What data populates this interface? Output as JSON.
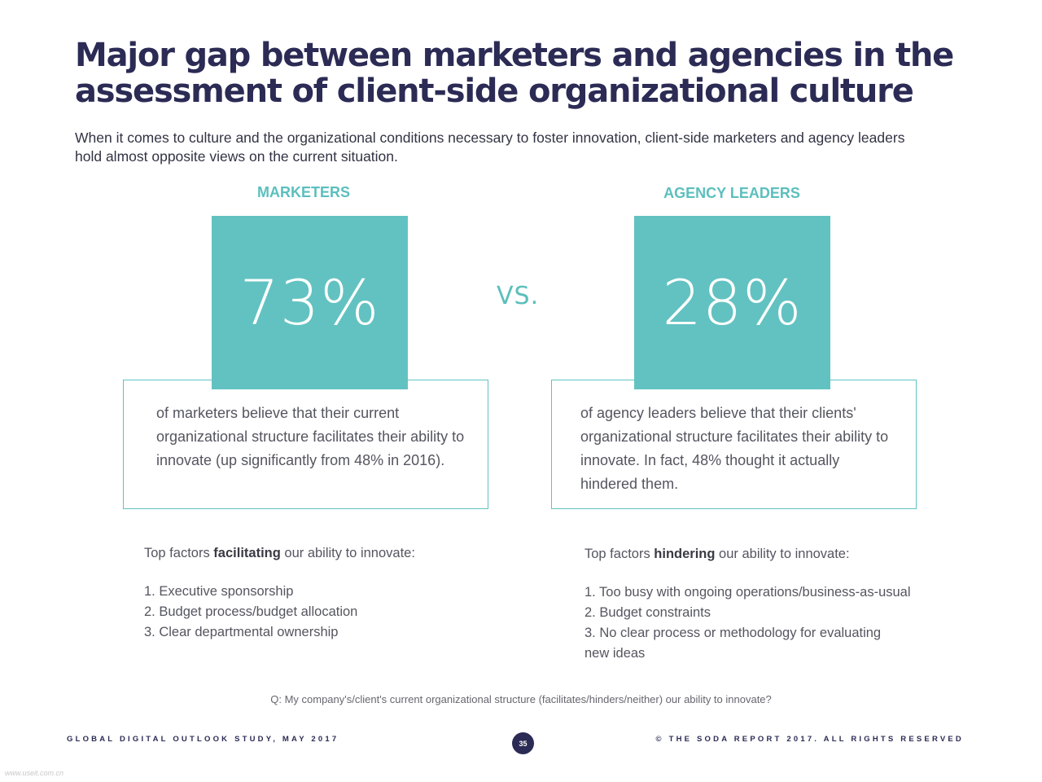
{
  "title": {
    "line1": "Major gap between marketers and agencies in the",
    "line2": "assessment of client-side organizational culture"
  },
  "intro": "When it comes to culture and the organizational conditions necessary to foster innovation, client-side marketers and agency leaders hold almost opposite views on the current situation.",
  "vs": "VS.",
  "marketers": {
    "heading": "MARKETERS",
    "stat": "73%",
    "description": "of marketers believe that their current organizational structure facilitates their ability to innovate (up significantly from 48% in 2016).",
    "factors_prefix": "Top factors ",
    "factors_keyword": "facilitating",
    "factors_suffix": " our ability to innovate:",
    "factors": [
      "1. Executive sponsorship",
      "2. Budget process/budget allocation",
      "3. Clear departmental ownership"
    ]
  },
  "agency": {
    "heading": "AGENCY LEADERS",
    "stat": "28%",
    "description": "of agency leaders believe that their clients' organizational structure facilitates their ability to innovate. In fact, 48% thought it actually hindered them.",
    "factors_prefix": "Top factors ",
    "factors_keyword": "hindering",
    "factors_suffix": " our ability to innovate:",
    "factors": [
      "1. Too busy with ongoing operations/business-as-usual",
      "2. Budget constraints",
      "3. No clear process or methodology for evaluating",
      "new ideas"
    ]
  },
  "question": "Q: My company's/client's current organizational structure (facilitates/hinders/neither) our ability to innovate?",
  "footer": {
    "left": "GLOBAL DIGITAL OUTLOOK STUDY, MAY 2017",
    "right": "© THE SODA REPORT 2017. ALL RIGHTS RESERVED",
    "page": "35"
  },
  "watermark": "www.useit.com.cn"
}
